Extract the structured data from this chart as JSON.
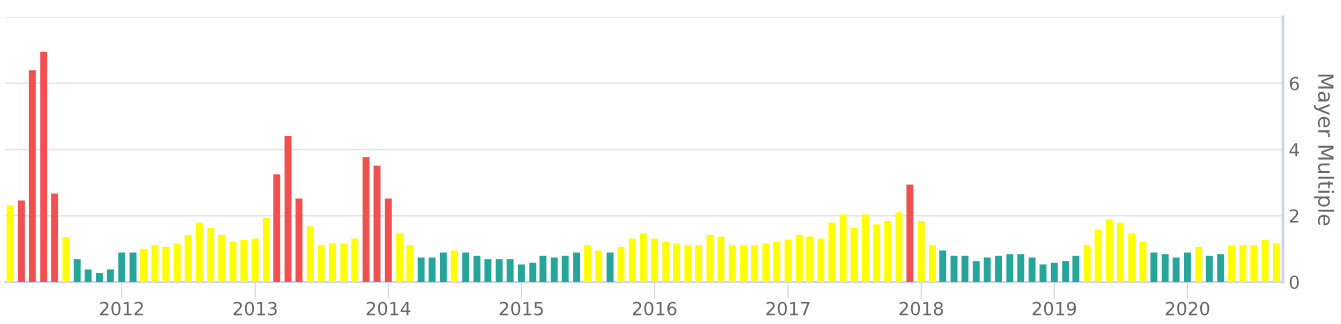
{
  "chart_data": {
    "type": "bar",
    "ylabel": "Mayer Multiple",
    "x": [
      "2011-03",
      "2011-04",
      "2011-05",
      "2011-06",
      "2011-07",
      "2011-08",
      "2011-09",
      "2011-10",
      "2011-11",
      "2011-12",
      "2012-01",
      "2012-02",
      "2012-03",
      "2012-04",
      "2012-05",
      "2012-06",
      "2012-07",
      "2012-08",
      "2012-09",
      "2012-10",
      "2012-11",
      "2012-12",
      "2013-01",
      "2013-02",
      "2013-03",
      "2013-04",
      "2013-05",
      "2013-06",
      "2013-07",
      "2013-08",
      "2013-09",
      "2013-10",
      "2013-11",
      "2013-12",
      "2014-01",
      "2014-02",
      "2014-03",
      "2014-04",
      "2014-05",
      "2014-06",
      "2014-07",
      "2014-08",
      "2014-09",
      "2014-10",
      "2014-11",
      "2014-12",
      "2015-01",
      "2015-02",
      "2015-03",
      "2015-04",
      "2015-05",
      "2015-06",
      "2015-07",
      "2015-08",
      "2015-09",
      "2015-10",
      "2015-11",
      "2015-12",
      "2016-01",
      "2016-02",
      "2016-03",
      "2016-04",
      "2016-05",
      "2016-06",
      "2016-07",
      "2016-08",
      "2016-09",
      "2016-10",
      "2016-11",
      "2016-12",
      "2017-01",
      "2017-02",
      "2017-03",
      "2017-04",
      "2017-05",
      "2017-06",
      "2017-07",
      "2017-08",
      "2017-09",
      "2017-10",
      "2017-11",
      "2017-12",
      "2018-01",
      "2018-02",
      "2018-03",
      "2018-04",
      "2018-05",
      "2018-06",
      "2018-07",
      "2018-08",
      "2018-09",
      "2018-10",
      "2018-11",
      "2018-12",
      "2019-01",
      "2019-02",
      "2019-03",
      "2019-04",
      "2019-05",
      "2019-06",
      "2019-07",
      "2019-08",
      "2019-09",
      "2019-10",
      "2019-11",
      "2019-12",
      "2020-01",
      "2020-02",
      "2020-03",
      "2020-04",
      "2020-05",
      "2020-06",
      "2020-07",
      "2020-08",
      "2020-09"
    ],
    "values": [
      2.31,
      2.46,
      6.39,
      6.95,
      2.67,
      1.36,
      0.69,
      0.38,
      0.27,
      0.38,
      0.89,
      0.89,
      1.0,
      1.11,
      1.06,
      1.16,
      1.42,
      1.79,
      1.63,
      1.42,
      1.22,
      1.27,
      1.31,
      1.94,
      3.25,
      4.41,
      2.52,
      1.68,
      1.11,
      1.16,
      1.16,
      1.31,
      3.77,
      3.51,
      2.52,
      1.47,
      1.11,
      0.74,
      0.74,
      0.89,
      0.95,
      0.89,
      0.79,
      0.69,
      0.69,
      0.69,
      0.53,
      0.58,
      0.79,
      0.74,
      0.79,
      0.89,
      1.11,
      0.95,
      0.89,
      1.06,
      1.31,
      1.47,
      1.31,
      1.21,
      1.16,
      1.11,
      1.11,
      1.42,
      1.37,
      1.11,
      1.11,
      1.11,
      1.16,
      1.21,
      1.27,
      1.42,
      1.37,
      1.31,
      1.79,
      2.04,
      1.63,
      2.04,
      1.74,
      1.84,
      2.1,
      2.94,
      1.84,
      1.11,
      0.95,
      0.79,
      0.79,
      0.63,
      0.74,
      0.79,
      0.84,
      0.84,
      0.74,
      0.53,
      0.58,
      0.63,
      0.79,
      1.11,
      1.58,
      1.89,
      1.79,
      1.47,
      1.21,
      0.89,
      0.84,
      0.74,
      0.89,
      1.06,
      0.79,
      0.84,
      1.11,
      1.11,
      1.11,
      1.27,
      1.16
    ],
    "colors": [
      "#ffff00",
      "#f05050",
      "#f05050",
      "#f05050",
      "#f05050",
      "#ffff00",
      "#26a69a",
      "#26a69a",
      "#26a69a",
      "#26a69a",
      "#26a69a",
      "#26a69a",
      "#ffff00",
      "#ffff00",
      "#ffff00",
      "#ffff00",
      "#ffff00",
      "#ffff00",
      "#ffff00",
      "#ffff00",
      "#ffff00",
      "#ffff00",
      "#ffff00",
      "#ffff00",
      "#f05050",
      "#f05050",
      "#f05050",
      "#ffff00",
      "#ffff00",
      "#ffff00",
      "#ffff00",
      "#ffff00",
      "#f05050",
      "#f05050",
      "#f05050",
      "#ffff00",
      "#ffff00",
      "#26a69a",
      "#26a69a",
      "#26a69a",
      "#ffff00",
      "#26a69a",
      "#26a69a",
      "#26a69a",
      "#26a69a",
      "#26a69a",
      "#26a69a",
      "#26a69a",
      "#26a69a",
      "#26a69a",
      "#26a69a",
      "#26a69a",
      "#ffff00",
      "#ffff00",
      "#26a69a",
      "#ffff00",
      "#ffff00",
      "#ffff00",
      "#ffff00",
      "#ffff00",
      "#ffff00",
      "#ffff00",
      "#ffff00",
      "#ffff00",
      "#ffff00",
      "#ffff00",
      "#ffff00",
      "#ffff00",
      "#ffff00",
      "#ffff00",
      "#ffff00",
      "#ffff00",
      "#ffff00",
      "#ffff00",
      "#ffff00",
      "#ffff00",
      "#ffff00",
      "#ffff00",
      "#ffff00",
      "#ffff00",
      "#ffff00",
      "#f05050",
      "#ffff00",
      "#ffff00",
      "#26a69a",
      "#26a69a",
      "#26a69a",
      "#26a69a",
      "#26a69a",
      "#26a69a",
      "#26a69a",
      "#26a69a",
      "#26a69a",
      "#26a69a",
      "#26a69a",
      "#26a69a",
      "#26a69a",
      "#ffff00",
      "#ffff00",
      "#ffff00",
      "#ffff00",
      "#ffff00",
      "#ffff00",
      "#26a69a",
      "#26a69a",
      "#26a69a",
      "#26a69a",
      "#ffff00",
      "#26a69a",
      "#26a69a",
      "#ffff00",
      "#ffff00",
      "#ffff00",
      "#ffff00",
      "#ffff00"
    ],
    "xlim": [
      "2011-02-15",
      "2020-09-19"
    ],
    "xticks": [
      {
        "value": "2012",
        "label": "2012"
      },
      {
        "value": "2013",
        "label": "2013"
      },
      {
        "value": "2014",
        "label": "2014"
      },
      {
        "value": "2015",
        "label": "2015"
      },
      {
        "value": "2016",
        "label": "2016"
      },
      {
        "value": "2017",
        "label": "2017"
      },
      {
        "value": "2018",
        "label": "2018"
      },
      {
        "value": "2019",
        "label": "2019"
      },
      {
        "value": "2020",
        "label": "2020"
      }
    ],
    "ylim": [
      0,
      8
    ],
    "yticks": [
      0,
      2,
      4,
      6,
      {
        "value": 8,
        "label": null
      }
    ],
    "grid": "y",
    "legend": false
  }
}
